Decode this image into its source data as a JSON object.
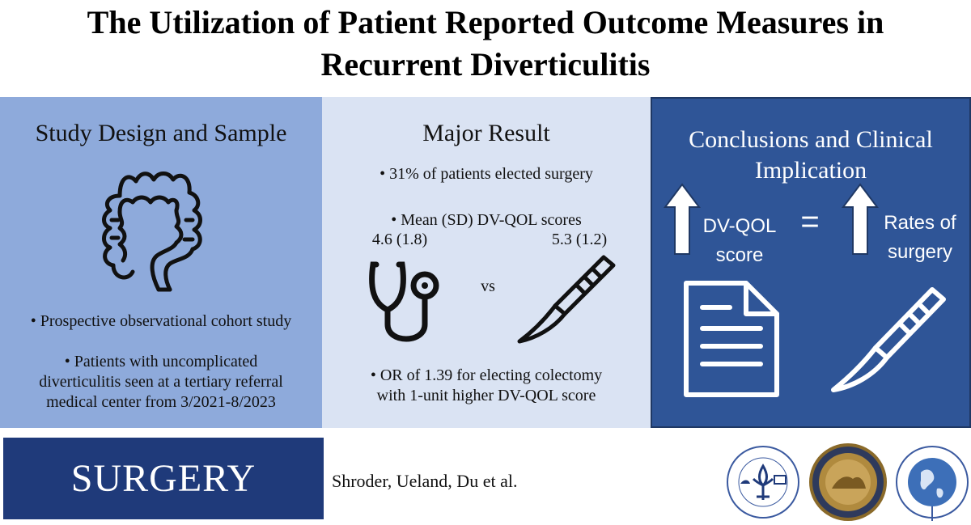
{
  "title": {
    "line1": "The Utilization of Patient Reported Outcome Measures in",
    "line2": "Recurrent Diverticulitis"
  },
  "study_design": {
    "heading": "Study Design and Sample",
    "icon": "colon-icon",
    "bullet1": "• Prospective observational cohort study",
    "bullet2_line1": "• Patients with uncomplicated",
    "bullet2_line2": "diverticulitis seen at a tertiary referral",
    "bullet2_line3": "medical center from 3/2021-8/2023"
  },
  "major_result": {
    "heading": "Major Result",
    "bullet1": "• 31% of patients elected surgery",
    "bullet2": "• Mean (SD) DV-QOL scores",
    "score_left": "4.6 (1.8)",
    "score_right": "5.3 (1.2)",
    "vs": "vs",
    "icon_left": "stethoscope-icon",
    "icon_right": "scalpel-icon",
    "bullet3_line1": "• OR of 1.39 for electing colectomy",
    "bullet3_line2": "with 1-unit higher DV-QOL score"
  },
  "conclusions": {
    "heading_line1": "Conclusions and Clinical",
    "heading_line2": "Implication",
    "left_line1": "DV-QOL",
    "left_line2": "score",
    "equals": "=",
    "right_line1": "Rates of",
    "right_line2": "surgery",
    "icon_doc": "document-icon",
    "icon_scalpel": "scalpel-icon"
  },
  "footer": {
    "journal": "SURGERY",
    "authors": "Shroder, Ueland, Du et al."
  },
  "colors": {
    "panel1": "#8eaadb",
    "panel2": "#dae3f3",
    "panel3": "#2f5597",
    "journal_bg": "#1f3a7a"
  }
}
